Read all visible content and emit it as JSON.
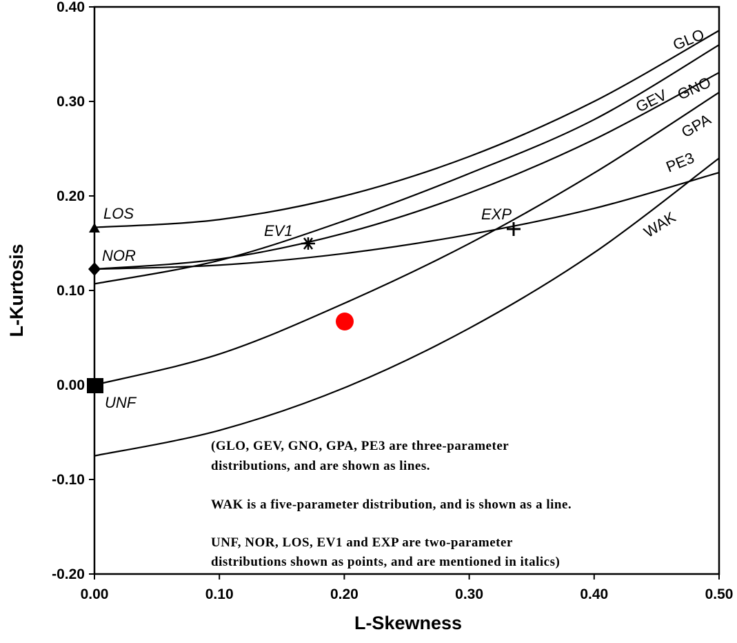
{
  "chart_data": {
    "type": "line",
    "xlabel": "L-Skewness",
    "ylabel": "L-Kurtosis",
    "xlim": [
      0.0,
      0.5
    ],
    "ylim": [
      -0.2,
      0.4
    ],
    "grid": false,
    "xticks": [
      "0.00",
      "0.10",
      "0.20",
      "0.30",
      "0.40",
      "0.50"
    ],
    "yticks": [
      "0.40",
      "0.30",
      "0.20",
      "0.10",
      "0.00",
      "-0.10",
      "-0.20"
    ],
    "series": [
      {
        "name": "GLO",
        "x": [
          0.0,
          0.1,
          0.2,
          0.3,
          0.4,
          0.5
        ],
        "y": [
          0.1667,
          0.175,
          0.2,
          0.2417,
          0.3,
          0.375
        ]
      },
      {
        "name": "GEV",
        "x": [
          0.0,
          0.1,
          0.2,
          0.3,
          0.4,
          0.5
        ],
        "y": [
          0.107,
          0.1318,
          0.1737,
          0.2237,
          0.2808,
          0.3598
        ]
      },
      {
        "name": "GNO",
        "x": [
          0.0,
          0.1,
          0.2,
          0.3,
          0.4,
          0.5
        ],
        "y": [
          0.1226,
          0.1332,
          0.1605,
          0.2031,
          0.2598,
          0.3305
        ]
      },
      {
        "name": "GPA",
        "x": [
          0.0,
          0.1,
          0.2,
          0.3,
          0.4,
          0.5
        ],
        "y": [
          0.0,
          0.0327,
          0.0864,
          0.1496,
          0.2243,
          0.3095
        ]
      },
      {
        "name": "PE3",
        "x": [
          0.0,
          0.1,
          0.2,
          0.3,
          0.4,
          0.5
        ],
        "y": [
          0.1226,
          0.1268,
          0.1391,
          0.1592,
          0.1868,
          0.2248
        ]
      },
      {
        "name": "WAK",
        "x": [
          0.0,
          0.1,
          0.2,
          0.3,
          0.4,
          0.5
        ],
        "y": [
          -0.075,
          -0.048,
          -0.003,
          0.06,
          0.14,
          0.24
        ]
      }
    ],
    "points": [
      {
        "name": "UNF",
        "x": 0.0,
        "y": 0.0,
        "marker": "square"
      },
      {
        "name": "NOR",
        "x": 0.0,
        "y": 0.1226,
        "marker": "diamond"
      },
      {
        "name": "LOS",
        "x": 0.0,
        "y": 0.1667,
        "marker": "triangle"
      },
      {
        "name": "EV1",
        "x": 0.1699,
        "y": 0.1504,
        "marker": "star"
      },
      {
        "name": "EXP",
        "x": 0.3333,
        "y": 0.1667,
        "marker": "plus"
      }
    ],
    "highlight_point": {
      "x": 0.2,
      "y": 0.068,
      "color": "#ff0000"
    },
    "annotations": [
      "(GLO, GEV, GNO, GPA, PE3 are three-parameter",
      "distributions, and are shown as lines.",
      "WAK is a five-parameter distribution, and is shown as a line.",
      "UNF, NOR, LOS, EV1 and EXP are two-parameter",
      "distributions shown as points, and are mentioned in italics)"
    ]
  }
}
